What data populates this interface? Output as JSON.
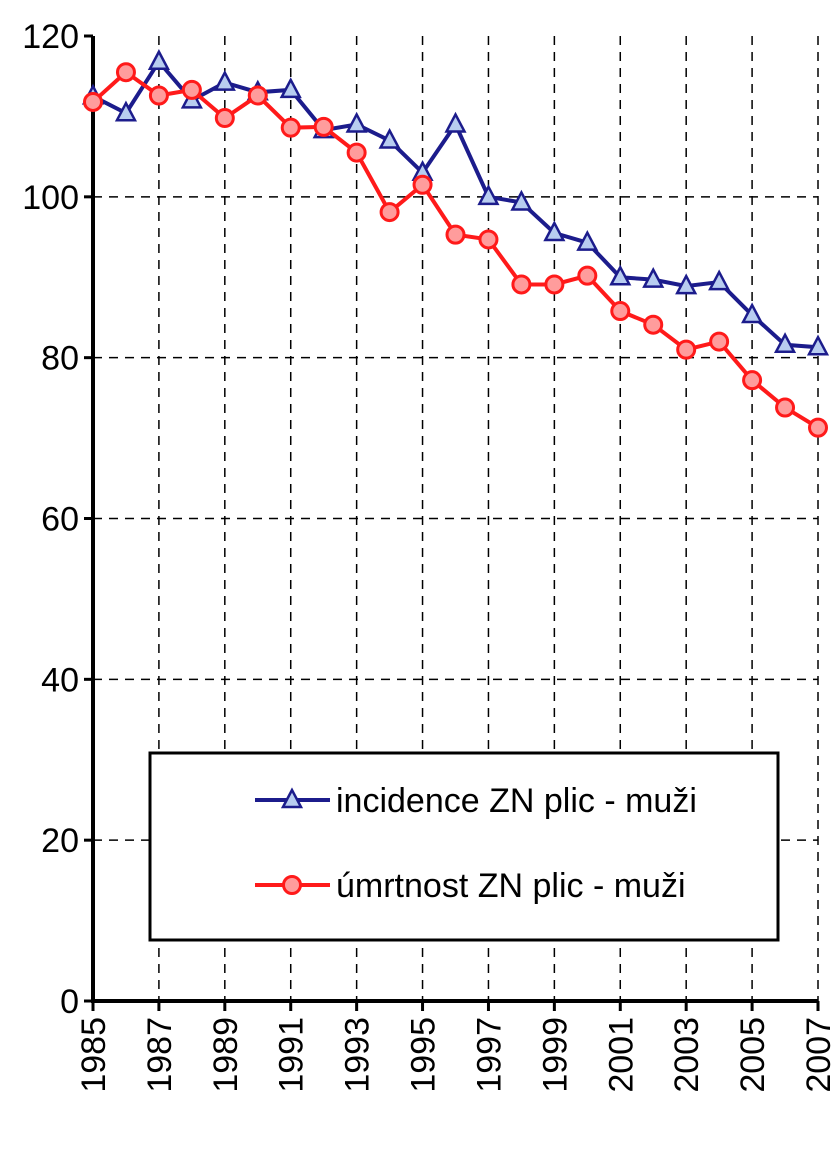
{
  "chart_data": {
    "type": "line",
    "x": [
      1985,
      1986,
      1987,
      1988,
      1989,
      1990,
      1991,
      1992,
      1993,
      1994,
      1995,
      1996,
      1997,
      1998,
      1999,
      2000,
      2001,
      2002,
      2003,
      2004,
      2005,
      2006,
      2007
    ],
    "series": [
      {
        "name": "incidence ZN plic - muži",
        "color": "#1c1c8c",
        "marker": "triangle",
        "values": [
          112.5,
          110.4,
          116.8,
          112,
          114.2,
          113,
          113.3,
          108.3,
          109,
          107,
          103,
          109,
          100,
          99.3,
          95.5,
          94.3,
          90,
          89.7,
          88.9,
          89.4,
          85.3,
          81.6,
          81.3
        ]
      },
      {
        "name": "úmrtnost ZN plic - muži",
        "color": "#ff1a1a",
        "marker": "circle",
        "values": [
          111.8,
          115.5,
          112.6,
          113.3,
          109.8,
          112.6,
          108.6,
          108.7,
          105.5,
          98.1,
          101.5,
          95.3,
          94.7,
          89.1,
          89.1,
          90.2,
          85.8,
          84.1,
          81,
          82,
          77.2,
          73.8,
          71.3
        ]
      }
    ],
    "xlim": [
      1985,
      2007
    ],
    "xticks": [
      1985,
      1987,
      1989,
      1991,
      1993,
      1995,
      1997,
      1999,
      2001,
      2003,
      2005,
      2007
    ],
    "ylim": [
      0,
      120
    ],
    "yticks": [
      0,
      20,
      40,
      60,
      80,
      100,
      120
    ],
    "grid": true,
    "legend": "bottom"
  }
}
